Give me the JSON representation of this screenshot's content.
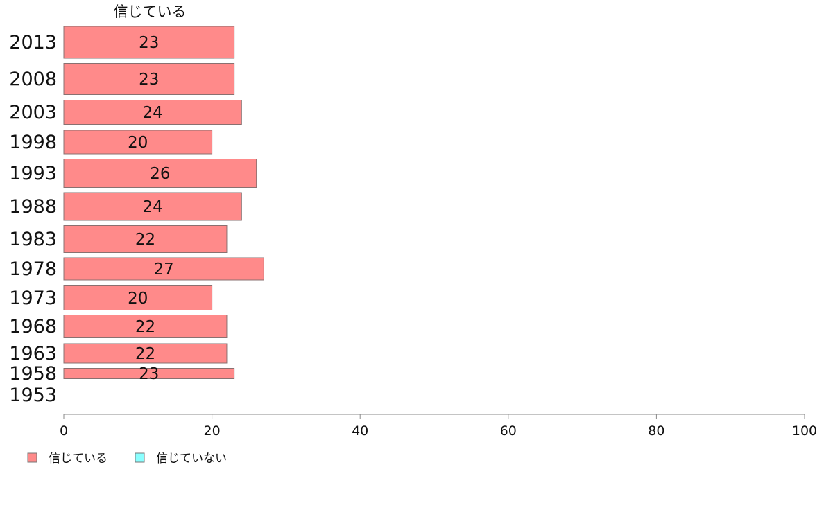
{
  "chart_data": {
    "type": "bar",
    "orientation": "horizontal",
    "column_title": "信じている",
    "categories": [
      "2013",
      "2008",
      "2003",
      "1998",
      "1993",
      "1988",
      "1983",
      "1978",
      "1973",
      "1968",
      "1963",
      "1958",
      "1953"
    ],
    "series": [
      {
        "name": "信じている",
        "color": "#ff8a8a",
        "values": [
          23,
          23,
          24,
          20,
          26,
          24,
          22,
          27,
          20,
          22,
          22,
          23,
          null
        ]
      },
      {
        "name": "信じていない",
        "color": "#8affff",
        "values": [
          null,
          null,
          null,
          null,
          null,
          null,
          null,
          null,
          null,
          null,
          null,
          null,
          null
        ]
      }
    ],
    "xlim": [
      0,
      100
    ],
    "x_ticks": [
      "0",
      "20",
      "40",
      "60",
      "80",
      "100"
    ],
    "grid": false,
    "legend_position": "bottom-left"
  }
}
